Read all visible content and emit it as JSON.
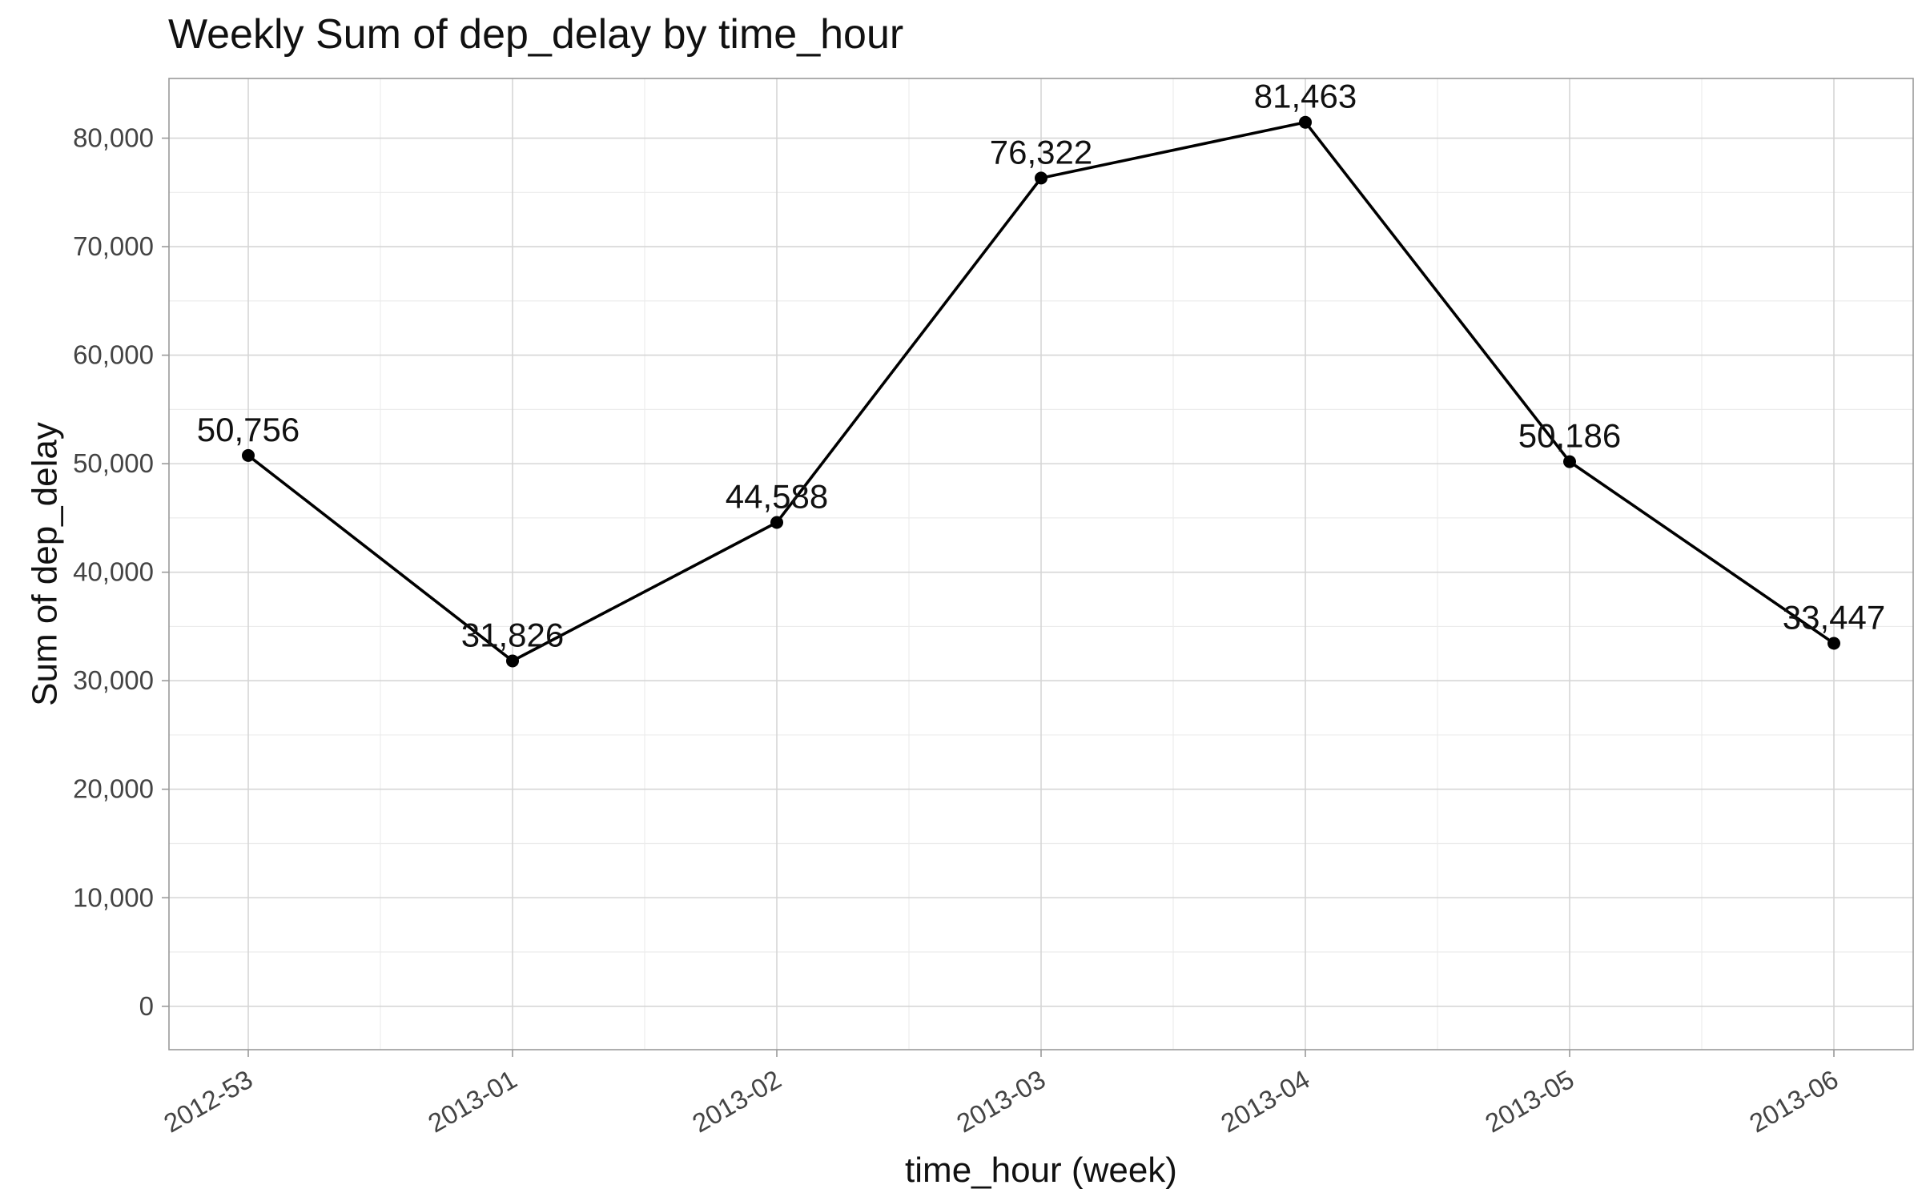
{
  "chart_data": {
    "type": "line",
    "title": "Weekly Sum of dep_delay by time_hour",
    "xlabel": "time_hour (week)",
    "ylabel": "Sum of dep_delay",
    "categories": [
      "2012-53",
      "2013-01",
      "2013-02",
      "2013-03",
      "2013-04",
      "2013-05",
      "2013-06"
    ],
    "series": [
      {
        "values": [
          50756,
          31826,
          44588,
          76322,
          81463,
          50186,
          33447
        ]
      }
    ],
    "data_labels": [
      "50,756",
      "31,826",
      "44,588",
      "76,322",
      "81,463",
      "50,186",
      "33,447"
    ],
    "ylim": [
      -4000,
      85500
    ],
    "yticks": [
      0,
      10000,
      20000,
      30000,
      40000,
      50000,
      60000,
      70000,
      80000
    ],
    "ytick_labels": [
      "0",
      "10,000",
      "20,000",
      "30,000",
      "40,000",
      "50,000",
      "60,000",
      "70,000",
      "80,000"
    ],
    "grid": true,
    "legend": "none",
    "line_color": "#000000"
  }
}
